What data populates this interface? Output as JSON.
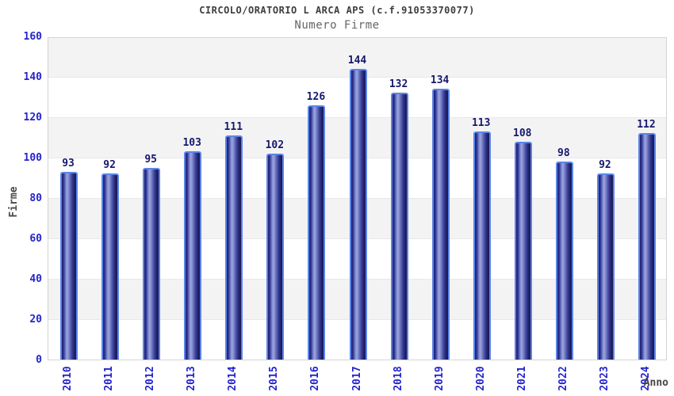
{
  "header": {
    "title": "CIRCOLO/ORATORIO L ARCA APS (c.f.91053370077)",
    "subtitle": "Numero Firme"
  },
  "axes": {
    "y_title": "Firme",
    "x_title": "Anno"
  },
  "chart_data": {
    "type": "bar",
    "title": "CIRCOLO/ORATORIO L ARCA APS (c.f.91053370077)",
    "subtitle": "Numero Firme",
    "xlabel": "Anno",
    "ylabel": "Firme",
    "categories": [
      "2010",
      "2011",
      "2012",
      "2013",
      "2014",
      "2015",
      "2016",
      "2017",
      "2018",
      "2019",
      "2020",
      "2021",
      "2022",
      "2023",
      "2024"
    ],
    "values": [
      93,
      92,
      95,
      103,
      111,
      102,
      126,
      144,
      132,
      134,
      113,
      108,
      98,
      92,
      112
    ],
    "ylim": [
      0,
      160
    ],
    "yticks": [
      0,
      20,
      40,
      60,
      80,
      100,
      120,
      140,
      160
    ],
    "grid": "alternating horizontal bands every 20 units",
    "legend": "none",
    "bar_style": "3d-cylinder gradient",
    "colors": {
      "bar_dark": "#202070",
      "bar_highlight": "#9ba4dc",
      "bar_border": "#5b85e8",
      "tick_label": "#2424cc",
      "value_label": "#17176e",
      "band_gray": "#f3f3f3",
      "band_white": "#ffffff",
      "plot_border": "#d4d4d4",
      "title_text": "#3d3d3d",
      "subtitle_text": "#666666",
      "axis_title_text": "#444444"
    }
  }
}
